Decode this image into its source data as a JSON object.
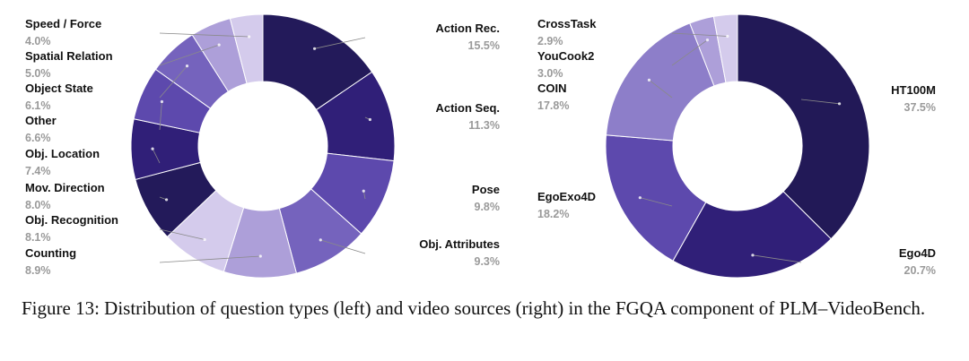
{
  "chart_data": [
    {
      "type": "pie",
      "variant": "donut",
      "labels": [
        "Action Rec.",
        "Action Seq.",
        "Pose",
        "Obj. Attributes",
        "Counting",
        "Obj. Recognition",
        "Mov. Direction",
        "Obj. Location",
        "Other",
        "Object State",
        "Spatial Relation",
        "Speed / Force"
      ],
      "values": [
        15.5,
        11.3,
        9.8,
        9.3,
        8.9,
        8.1,
        8.0,
        7.4,
        6.6,
        6.1,
        5.0,
        4.0
      ],
      "value_labels": [
        "15.5%",
        "11.3%",
        "9.8%",
        "9.3%",
        "8.9%",
        "8.1%",
        "8.0%",
        "7.4%",
        "6.6%",
        "6.1%",
        "5.0%",
        "4.0%"
      ],
      "colors": [
        "#231a5a",
        "#301f78",
        "#5d49ad",
        "#7563bd",
        "#ad9fd9",
        "#d4cbec",
        "#231a5a",
        "#301f78",
        "#5d49ad",
        "#7563bd",
        "#ad9fd9",
        "#d4cbec"
      ],
      "start": "top",
      "direction": "clockwise"
    },
    {
      "type": "pie",
      "variant": "donut",
      "labels": [
        "HT100M",
        "Ego4D",
        "EgoExo4D",
        "COIN",
        "YouCook2",
        "CrossTask"
      ],
      "values": [
        37.5,
        20.7,
        18.2,
        17.8,
        3.0,
        2.9
      ],
      "value_labels": [
        "37.5%",
        "20.7%",
        "18.2%",
        "17.8%",
        "3.0%",
        "2.9%"
      ],
      "colors": [
        "#221957",
        "#301f78",
        "#5d49ad",
        "#8d7ec9",
        "#ad9fd9",
        "#d4cbec"
      ],
      "start": "top",
      "direction": "clockwise"
    }
  ],
  "caption": "Figure 13: Distribution of question types (left) and video sources (right) in the FGQA component of PLM–VideoBench."
}
